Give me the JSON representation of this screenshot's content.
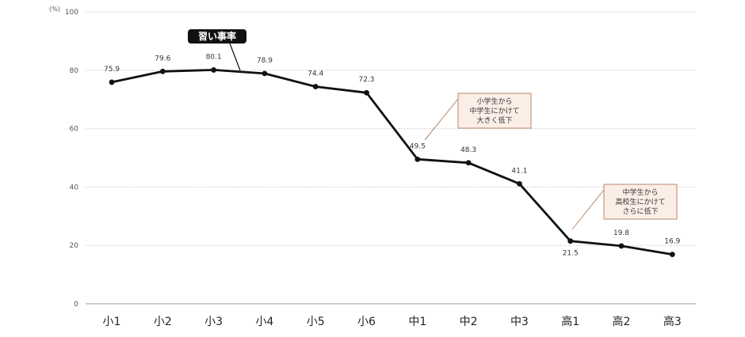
{
  "chart_data": {
    "type": "line",
    "unit_label": "(%)",
    "categories": [
      "小1",
      "小2",
      "小3",
      "小4",
      "小5",
      "小6",
      "中1",
      "中2",
      "中3",
      "高1",
      "高2",
      "高3"
    ],
    "series": [
      {
        "name": "習い事率",
        "values": [
          75.9,
          79.6,
          80.1,
          78.9,
          74.4,
          72.3,
          49.5,
          48.3,
          41.1,
          21.5,
          19.8,
          16.9
        ],
        "value_labels": [
          "75.9",
          "79.6",
          "80.1",
          "78.9",
          "74.4",
          "72.3",
          "49.5",
          "48.3",
          "41.1",
          "21.5",
          "19.8",
          "16.9"
        ]
      }
    ],
    "ylim": [
      0,
      100
    ],
    "yticks": [
      0,
      20,
      40,
      60,
      80,
      100
    ],
    "grid": true,
    "annotations": [
      {
        "lines": [
          "小学生から",
          "中学生にかけて",
          "大きく低下"
        ],
        "category": "中1"
      },
      {
        "lines": [
          "中学生から",
          "高校生にかけて",
          "さらに低下"
        ],
        "category": "高1"
      }
    ],
    "colors": {
      "line": "#111111",
      "grid": "#c8c8c8",
      "label_bg": "#111111",
      "callout_bg": "#fbeee6",
      "callout_border": "#b9876a"
    }
  }
}
